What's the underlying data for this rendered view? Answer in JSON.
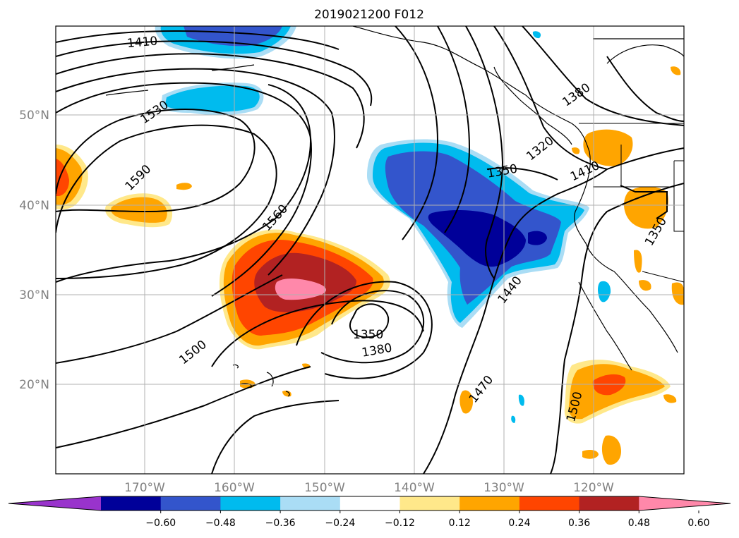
{
  "title": "2019021200 F012",
  "map": {
    "lon_ticks": [
      "170°W",
      "160°W",
      "150°W",
      "140°W",
      "130°W",
      "120°W"
    ],
    "lat_ticks": [
      "50°N",
      "40°N",
      "30°N",
      "20°N"
    ],
    "gridlines": true,
    "contour_labels": [
      "1410",
      "1530",
      "1590",
      "1560",
      "1500",
      "1350",
      "1380",
      "1320",
      "1350",
      "1410",
      "1380",
      "1440",
      "1470",
      "1500",
      "1350"
    ]
  },
  "colorbar": {
    "colors": [
      "#9933cc",
      "#000099",
      "#3355cc",
      "#00bbee",
      "#aaddf5",
      "#ffffff",
      "#ffe88a",
      "#ffa500",
      "#ff4500",
      "#b22222",
      "#ff88aa"
    ],
    "tick_labels": [
      "−0.60",
      "−0.48",
      "−0.36",
      "−0.24",
      "−0.12",
      "0.12",
      "0.24",
      "0.36",
      "0.48",
      "0.60"
    ],
    "extend": "both"
  }
}
